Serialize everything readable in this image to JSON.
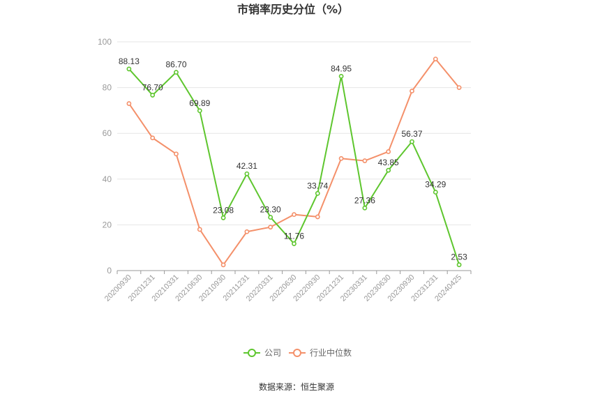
{
  "title": "市销率历史分位（%）",
  "source": "数据来源：恒生聚源",
  "chart_data": {
    "type": "line",
    "categories": [
      "20200930",
      "20201231",
      "20210331",
      "20210630",
      "20210930",
      "20211231",
      "20220331",
      "20220630",
      "20220930",
      "20221231",
      "20230331",
      "20230630",
      "20230930",
      "20231231",
      "20240425"
    ],
    "ylim": [
      0,
      100
    ],
    "yticks": [
      0,
      20,
      40,
      60,
      80,
      100
    ],
    "grid": true,
    "legend_position": "bottom",
    "series": [
      {
        "name": "公司",
        "color": "#5ec62e",
        "values": [
          88.13,
          76.7,
          86.7,
          69.89,
          23.08,
          42.31,
          23.3,
          11.76,
          33.74,
          84.95,
          27.36,
          43.85,
          56.37,
          34.29,
          2.53
        ],
        "labels": [
          "88.13",
          "76.70",
          "86.70",
          "69.89",
          "23.08",
          "42.31",
          "23.30",
          "11.76",
          "33.74",
          "84.95",
          "27.36",
          "43.85",
          "56.37",
          "34.29",
          "2.53"
        ]
      },
      {
        "name": "行业中位数",
        "color": "#f4906a",
        "values": [
          73.0,
          58.0,
          51.0,
          18.0,
          2.5,
          17.0,
          19.0,
          24.5,
          23.5,
          49.0,
          48.0,
          52.0,
          78.5,
          92.5,
          80.0
        ]
      }
    ]
  }
}
